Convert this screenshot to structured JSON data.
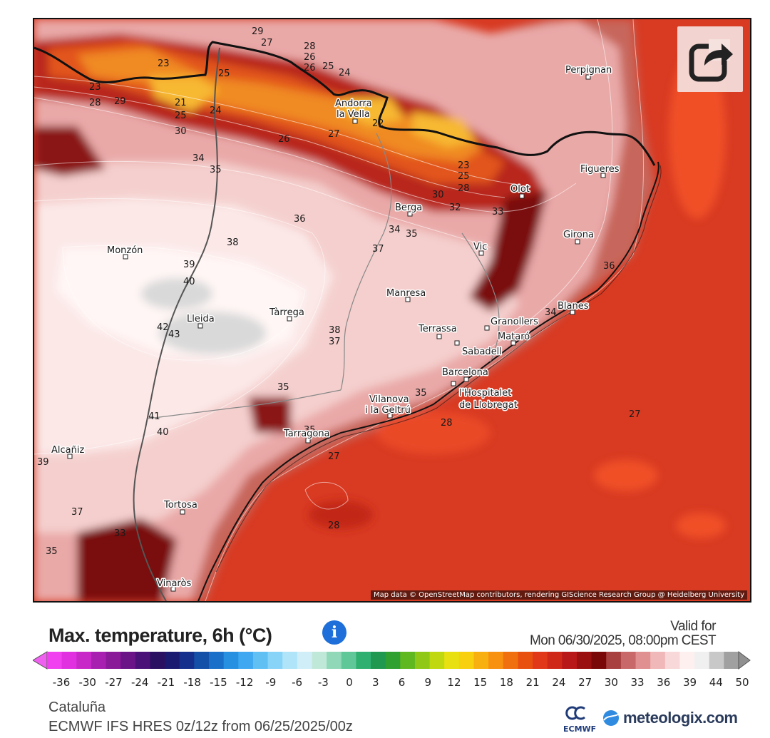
{
  "map": {
    "attribution": "Map data © OpenStreetMap contributors, rendering GIScience Research Group @ Heidelberg University",
    "share_icon": "share-icon",
    "cities": [
      {
        "name": "Perpignan"
      },
      {
        "name": "Andorra"
      },
      {
        "name": "la Vella"
      },
      {
        "name": "Figueres"
      },
      {
        "name": "Olot"
      },
      {
        "name": "Berga"
      },
      {
        "name": "Girona"
      },
      {
        "name": "Vic"
      },
      {
        "name": "Monzón"
      },
      {
        "name": "Manresa"
      },
      {
        "name": "Blanes"
      },
      {
        "name": "Lleida"
      },
      {
        "name": "Tàrrega"
      },
      {
        "name": "Granollers"
      },
      {
        "name": "Terrassa"
      },
      {
        "name": "Mataró"
      },
      {
        "name": "Sabadell"
      },
      {
        "name": "Barcelona"
      },
      {
        "name": "l'Hospitalet"
      },
      {
        "name": "de Llobregat"
      },
      {
        "name": "Vilanova"
      },
      {
        "name": "i la Geltrú"
      },
      {
        "name": "Tarragona"
      },
      {
        "name": "Alcañiz"
      },
      {
        "name": "Tortosa"
      },
      {
        "name": "Vinaròs"
      }
    ],
    "contour_labels": [
      "29",
      "27",
      "28",
      "26",
      "26",
      "23",
      "25",
      "25",
      "24",
      "23",
      "28",
      "29",
      "21",
      "25",
      "24",
      "26",
      "27",
      "22",
      "30",
      "34",
      "35",
      "23",
      "25",
      "28",
      "30",
      "32",
      "33",
      "36",
      "38",
      "37",
      "34",
      "35",
      "39",
      "40",
      "42",
      "43",
      "38",
      "37",
      "36",
      "35",
      "35",
      "41",
      "40",
      "39",
      "37",
      "35",
      "33",
      "34",
      "35",
      "27",
      "28",
      "27",
      "28"
    ]
  },
  "legend": {
    "title": "Max. temperature, 6h (°C)",
    "info_icon": "info-icon",
    "valid_label": "Valid for",
    "valid_date": "Mon 06/30/2025, 08:00pm CEST",
    "ticks": [
      "-36",
      "-30",
      "-27",
      "-24",
      "-21",
      "-18",
      "-15",
      "-12",
      "-9",
      "-6",
      "-3",
      "0",
      "3",
      "6",
      "9",
      "12",
      "15",
      "18",
      "21",
      "24",
      "27",
      "30",
      "33",
      "36",
      "39",
      "44",
      "50"
    ],
    "region": "Cataluña",
    "model": "ECMWF IFS HRES 0z/12z from 06/25/2025/00z",
    "ecmwf_label": "ECMWF",
    "brand": "meteologix.com"
  }
}
